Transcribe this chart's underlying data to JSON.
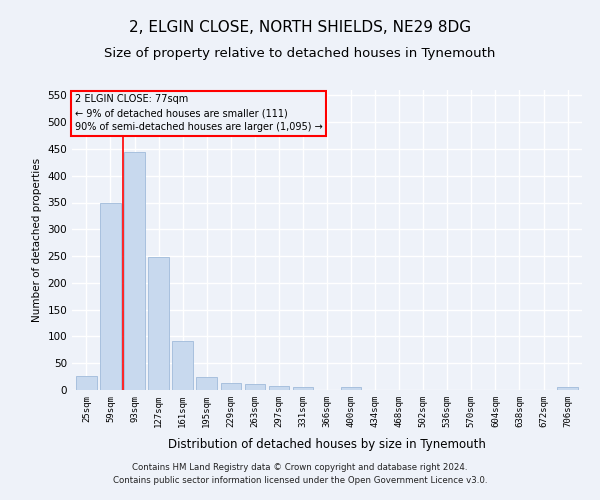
{
  "title": "2, ELGIN CLOSE, NORTH SHIELDS, NE29 8DG",
  "subtitle": "Size of property relative to detached houses in Tynemouth",
  "xlabel": "Distribution of detached houses by size in Tynemouth",
  "ylabel": "Number of detached properties",
  "bar_color": "#c8d9ee",
  "bar_edge_color": "#a0bbda",
  "categories": [
    "25sqm",
    "59sqm",
    "93sqm",
    "127sqm",
    "161sqm",
    "195sqm",
    "229sqm",
    "263sqm",
    "297sqm",
    "331sqm",
    "366sqm",
    "400sqm",
    "434sqm",
    "468sqm",
    "502sqm",
    "536sqm",
    "570sqm",
    "604sqm",
    "638sqm",
    "672sqm",
    "706sqm"
  ],
  "values": [
    27,
    350,
    445,
    248,
    92,
    24,
    14,
    11,
    7,
    6,
    0,
    5,
    0,
    0,
    0,
    0,
    0,
    0,
    0,
    0,
    5
  ],
  "ylim": [
    0,
    560
  ],
  "yticks": [
    0,
    50,
    100,
    150,
    200,
    250,
    300,
    350,
    400,
    450,
    500,
    550
  ],
  "annotation_line1": "2 ELGIN CLOSE: 77sqm",
  "annotation_line2": "← 9% of detached houses are smaller (111)",
  "annotation_line3": "90% of semi-detached houses are larger (1,095) →",
  "footer1": "Contains HM Land Registry data © Crown copyright and database right 2024.",
  "footer2": "Contains public sector information licensed under the Open Government Licence v3.0.",
  "background_color": "#eef2f9",
  "grid_color": "#ffffff",
  "title_fontsize": 11,
  "subtitle_fontsize": 9.5
}
